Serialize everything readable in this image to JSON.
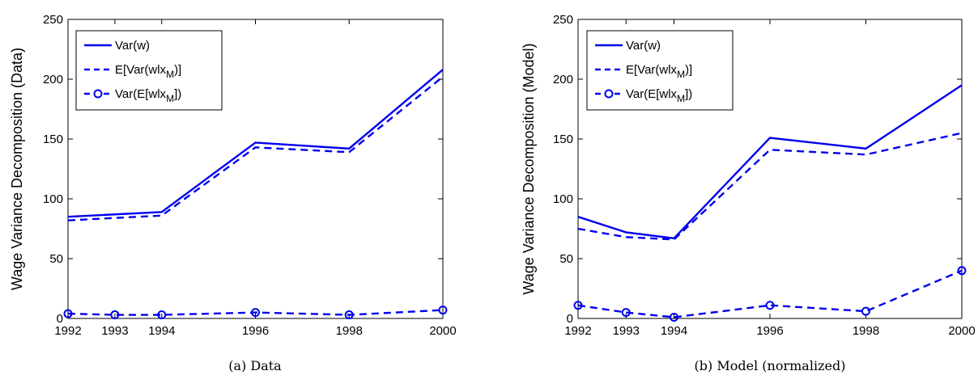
{
  "chart_data": [
    {
      "type": "line",
      "caption": "(a) Data",
      "ylabel": "Wage Variance Decomposition (Data)",
      "xlim": [
        1992,
        2000
      ],
      "ylim": [
        0,
        250
      ],
      "xticks": [
        1992,
        1993,
        1994,
        1996,
        1998,
        2000
      ],
      "yticks": [
        0,
        50,
        100,
        150,
        200,
        250
      ],
      "grid": false,
      "legend_position": "top-left",
      "series": [
        {
          "name": "Var(w)",
          "style": "solid",
          "marker": "none",
          "x": [
            1992,
            1994,
            1996,
            1998,
            2000
          ],
          "y": [
            85,
            89,
            147,
            142,
            208
          ]
        },
        {
          "name": "E[Var(w|x_M)]",
          "style": "dashed",
          "marker": "none",
          "x": [
            1992,
            1994,
            1996,
            1998,
            2000
          ],
          "y": [
            82,
            86,
            143,
            139,
            202
          ]
        },
        {
          "name": "Var(E[w|x_M])",
          "style": "dashed",
          "marker": "circle",
          "x": [
            1992,
            1993,
            1994,
            1996,
            1998,
            2000
          ],
          "y": [
            4,
            3,
            3,
            5,
            3,
            7
          ]
        }
      ]
    },
    {
      "type": "line",
      "caption": "(b) Model (normalized)",
      "ylabel": "Wage Variance Decomposition (Model)",
      "xlim": [
        1992,
        2000
      ],
      "ylim": [
        0,
        250
      ],
      "xticks": [
        1992,
        1993,
        1994,
        1996,
        1998,
        2000
      ],
      "yticks": [
        0,
        50,
        100,
        150,
        200,
        250
      ],
      "grid": false,
      "legend_position": "top-left",
      "series": [
        {
          "name": "Var(w)",
          "style": "solid",
          "marker": "none",
          "x": [
            1992,
            1993,
            1994,
            1996,
            1998,
            2000
          ],
          "y": [
            85,
            72,
            67,
            151,
            142,
            195
          ]
        },
        {
          "name": "E[Var(w|x_M)]",
          "style": "dashed",
          "marker": "none",
          "x": [
            1992,
            1993,
            1994,
            1996,
            1998,
            2000
          ],
          "y": [
            75,
            68,
            66,
            141,
            137,
            155
          ]
        },
        {
          "name": "Var(E[w|x_M])",
          "style": "dashed",
          "marker": "circle",
          "x": [
            1992,
            1993,
            1994,
            1996,
            1998,
            2000
          ],
          "y": [
            11,
            5,
            1,
            11,
            6,
            40
          ]
        }
      ]
    }
  ],
  "colors": {
    "series": "#0000ee",
    "axes": "#000000",
    "background": "#ffffff"
  },
  "legend_text": [
    [
      {
        "main": "Var(w)",
        "sub": "",
        "tail": ""
      },
      {
        "main": "E[Var(wlx",
        "sub": "M",
        "tail": ")]"
      },
      {
        "main": "Var(E[wlx",
        "sub": "M",
        "tail": "])"
      }
    ],
    [
      {
        "main": "Var(w)",
        "sub": "",
        "tail": ""
      },
      {
        "main": "E[Var(wlx",
        "sub": "M",
        "tail": ")]"
      },
      {
        "main": "Var(E[wlx",
        "sub": "M",
        "tail": "])"
      }
    ]
  ]
}
